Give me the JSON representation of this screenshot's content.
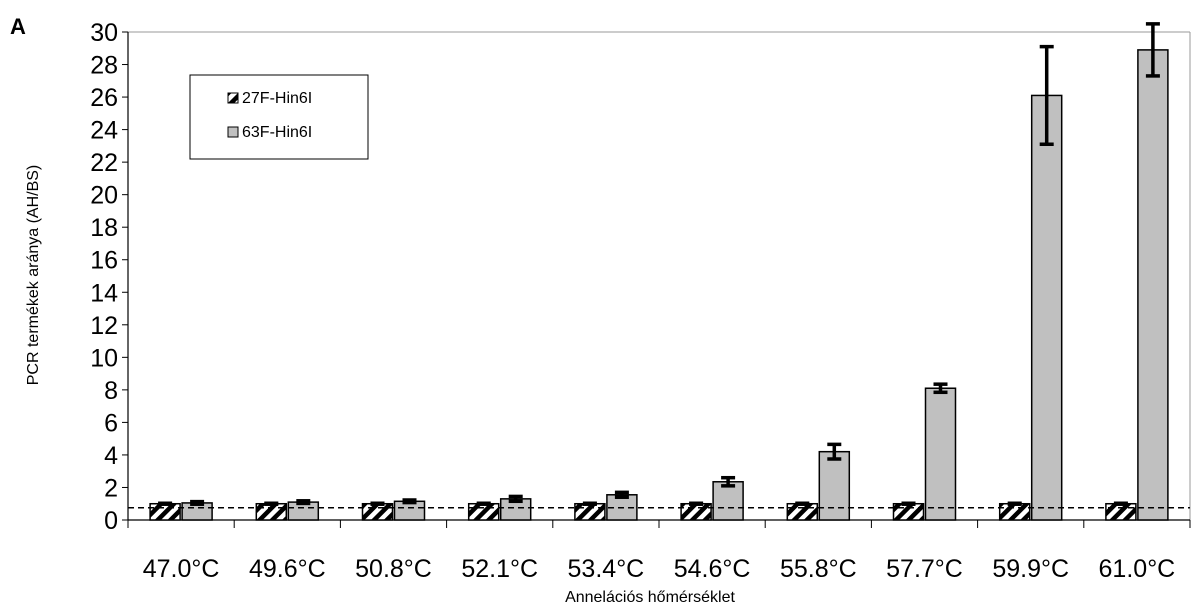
{
  "chart_data": {
    "type": "bar",
    "panel_label": "A",
    "title": "",
    "xlabel": "Annelációs hőmérséklet",
    "ylabel": "PCR termékek aránya (AH/BS)",
    "ylim": [
      0,
      30
    ],
    "ytick_step": 2,
    "categories": [
      "47.0°C",
      "49.6°C",
      "50.8°C",
      "52.1°C",
      "53.4°C",
      "54.6°C",
      "55.8°C",
      "57.7°C",
      "59.9°C",
      "61.0°C"
    ],
    "series": [
      {
        "name": "27F-Hin6I",
        "fill": "hatched",
        "values": [
          1.0,
          1.0,
          1.0,
          1.0,
          1.0,
          1.0,
          1.0,
          1.0,
          1.0,
          1.0
        ],
        "errors": [
          0.03,
          0.03,
          0.03,
          0.03,
          0.03,
          0.03,
          0.03,
          0.03,
          0.03,
          0.03
        ]
      },
      {
        "name": "63F-Hin6I",
        "fill": "#c0c0c0",
        "values": [
          1.05,
          1.1,
          1.15,
          1.3,
          1.55,
          2.35,
          4.2,
          8.1,
          26.1,
          28.9
        ],
        "errors": [
          0.08,
          0.08,
          0.08,
          0.15,
          0.15,
          0.25,
          0.45,
          0.25,
          3.0,
          1.6
        ]
      }
    ],
    "reference_line": {
      "y": 0.75,
      "style": "dashed"
    },
    "grid": false,
    "legend": {
      "position": "top-left"
    }
  }
}
